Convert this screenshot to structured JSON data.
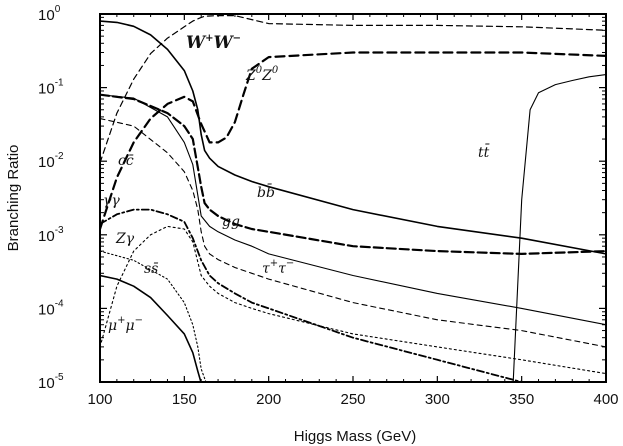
{
  "chart_data": {
    "type": "line",
    "title": "",
    "xlabel": "Higgs Mass (GeV)",
    "ylabel": "Branching Ratio",
    "xlim": [
      100,
      400
    ],
    "ylim_exp": [
      -5,
      0
    ],
    "yscale": "log",
    "grid": false,
    "x_ticks": [
      "100",
      "150",
      "200",
      "250",
      "300",
      "350",
      "400"
    ],
    "y_ticks": [
      {
        "base": "10",
        "exp": "0"
      },
      {
        "base": "10",
        "exp": "-1"
      },
      {
        "base": "10",
        "exp": "-2"
      },
      {
        "base": "10",
        "exp": "-3"
      },
      {
        "base": "10",
        "exp": "-4"
      },
      {
        "base": "10",
        "exp": "-5"
      }
    ],
    "series": [
      {
        "name": "bb",
        "x": [
          100,
          110,
          120,
          130,
          140,
          150,
          155,
          158,
          160,
          162,
          165,
          170,
          180,
          190,
          200,
          250,
          300,
          350,
          400
        ],
        "y": [
          0.8,
          0.77,
          0.68,
          0.52,
          0.33,
          0.17,
          0.09,
          0.05,
          0.023,
          0.014,
          0.011,
          0.0085,
          0.0065,
          0.0053,
          0.0045,
          0.0022,
          0.0013,
          0.0009,
          0.00055
        ]
      },
      {
        "name": "WW",
        "x": [
          100,
          110,
          120,
          130,
          140,
          150,
          155,
          160,
          162,
          165,
          170,
          180,
          200,
          250,
          300,
          350,
          400
        ],
        "y": [
          0.0095,
          0.045,
          0.13,
          0.29,
          0.47,
          0.67,
          0.8,
          0.9,
          0.93,
          0.94,
          0.95,
          0.95,
          0.74,
          0.7,
          0.7,
          0.67,
          0.6
        ]
      },
      {
        "name": "ZZ",
        "x": [
          100,
          110,
          120,
          130,
          140,
          150,
          155,
          160,
          165,
          170,
          175,
          180,
          185,
          190,
          200,
          250,
          300,
          350,
          400
        ],
        "y": [
          0.0012,
          0.006,
          0.018,
          0.038,
          0.06,
          0.075,
          0.065,
          0.032,
          0.018,
          0.018,
          0.021,
          0.034,
          0.08,
          0.18,
          0.26,
          0.3,
          0.3,
          0.3,
          0.27
        ]
      },
      {
        "name": "tt",
        "x": [
          345,
          350,
          355,
          360,
          370,
          380,
          390,
          400
        ],
        "y": [
          1e-05,
          0.003,
          0.05,
          0.085,
          0.11,
          0.125,
          0.14,
          0.15
        ]
      },
      {
        "name": "cc",
        "x": [
          100,
          120,
          140,
          150,
          155,
          158,
          160,
          162,
          165,
          170,
          180,
          190,
          200,
          250,
          300,
          350,
          400
        ],
        "y": [
          0.038,
          0.03,
          0.013,
          0.0072,
          0.004,
          0.0022,
          0.0011,
          0.0007,
          0.00055,
          0.00046,
          0.00036,
          0.0003,
          0.00025,
          0.00012,
          7e-05,
          5e-05,
          3e-05
        ]
      },
      {
        "name": "gg",
        "x": [
          100,
          120,
          140,
          150,
          155,
          160,
          162,
          165,
          170,
          180,
          190,
          200,
          250,
          300,
          350,
          400
        ],
        "y": [
          0.08,
          0.07,
          0.045,
          0.03,
          0.02,
          0.0045,
          0.0027,
          0.0022,
          0.0018,
          0.0014,
          0.0012,
          0.0011,
          0.0007,
          0.0006,
          0.00055,
          0.0006
        ]
      },
      {
        "name": "ττ",
        "x": [
          100,
          120,
          140,
          150,
          155,
          160,
          165,
          170,
          180,
          190,
          200,
          250,
          300,
          350,
          400
        ],
        "y": [
          0.08,
          0.072,
          0.04,
          0.018,
          0.009,
          0.0018,
          0.0013,
          0.0011,
          0.00085,
          0.0007,
          0.00055,
          0.00028,
          0.00016,
          0.0001,
          6e-05
        ]
      },
      {
        "name": "γγ",
        "x": [
          100,
          110,
          120,
          130,
          140,
          150,
          155,
          160,
          165,
          170,
          180,
          190,
          200,
          250,
          300,
          350,
          400
        ],
        "y": [
          0.0014,
          0.0019,
          0.0022,
          0.0022,
          0.0019,
          0.0015,
          0.0009,
          0.00045,
          0.00028,
          0.00022,
          0.00016,
          0.00012,
          0.0001,
          4e-05,
          2e-05,
          1e-05,
          5.5e-06
        ]
      },
      {
        "name": "Zγ",
        "x": [
          100,
          110,
          120,
          130,
          140,
          150,
          155,
          160,
          165,
          170,
          180,
          190,
          200,
          250,
          300,
          350,
          400
        ],
        "y": [
          3e-05,
          0.0002,
          0.0006,
          0.001,
          0.0013,
          0.0012,
          0.0008,
          0.00028,
          0.0002,
          0.00016,
          0.00012,
          0.0001,
          8.5e-05,
          4.5e-05,
          3e-05,
          2e-05,
          1.3e-05
        ]
      },
      {
        "name": "ss",
        "x": [
          100,
          120,
          140,
          150,
          155,
          158,
          160,
          163,
          166
        ],
        "y": [
          0.0006,
          0.00045,
          0.00025,
          0.00012,
          6e-05,
          3e-05,
          1.5e-05,
          8e-06,
          3e-06
        ]
      },
      {
        "name": "μμ",
        "x": [
          100,
          110,
          120,
          130,
          140,
          150,
          155,
          158,
          160,
          162
        ],
        "y": [
          0.00028,
          0.00025,
          0.0002,
          0.00014,
          8e-05,
          4.5e-05,
          2.5e-05,
          1.4e-05,
          7e-06,
          3e-06
        ]
      }
    ],
    "annotations": [
      {
        "id": "ww",
        "main": "W",
        "sup1": "+",
        "main2": "W",
        "sup2": "−"
      },
      {
        "id": "zz",
        "main": "Z",
        "sup1": "0",
        "main2": "Z",
        "sup2": "0"
      },
      {
        "id": "bb",
        "text": "bb̄"
      },
      {
        "id": "tt",
        "text": "tt̄"
      },
      {
        "id": "cc",
        "text": "cc̄"
      },
      {
        "id": "gg",
        "text": "gg"
      },
      {
        "id": "tautau",
        "main": "τ",
        "sup1": "+",
        "main2": "τ",
        "sup2": "−"
      },
      {
        "id": "gamgam",
        "text": "γγ"
      },
      {
        "id": "zgam",
        "text": "Zγ"
      },
      {
        "id": "ss",
        "text": "ss̄"
      },
      {
        "id": "mumu",
        "main": "μ",
        "sup1": "+",
        "main2": "μ",
        "sup2": "−"
      }
    ]
  }
}
